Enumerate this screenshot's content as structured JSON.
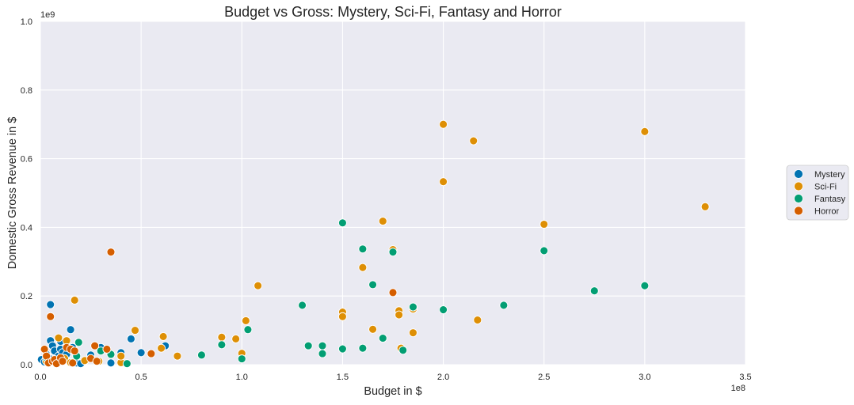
{
  "chart_data": {
    "type": "scatter",
    "title": "Budget vs Gross: Mystery, Sci-Fi, Fantasy and Horror",
    "xlabel": "Budget in $",
    "ylabel": "Domestic Gross Revenue in $",
    "x_exponent_label": "1e8",
    "y_exponent_label": "1e9",
    "xlim": [
      0,
      350000000
    ],
    "ylim": [
      0,
      1000000000
    ],
    "x_ticks": [
      0,
      50000000,
      100000000,
      150000000,
      200000000,
      250000000,
      300000000,
      350000000
    ],
    "x_tick_labels": [
      "0.0",
      "0.5",
      "1.0",
      "1.5",
      "2.0",
      "2.5",
      "3.0",
      "3.5"
    ],
    "y_ticks": [
      0,
      200000000,
      400000000,
      600000000,
      800000000,
      1000000000
    ],
    "y_tick_labels": [
      "0.0",
      "0.2",
      "0.4",
      "0.6",
      "0.8",
      "1.0"
    ],
    "grid": true,
    "legend_placement": "right, outside plot area",
    "series": [
      {
        "name": "Mystery",
        "color": "#0173b2",
        "points": [
          [
            500000,
            15000000
          ],
          [
            2000000,
            8000000
          ],
          [
            3000000,
            30000000
          ],
          [
            4000000,
            20000000
          ],
          [
            5000000,
            175000000
          ],
          [
            5000000,
            70000000
          ],
          [
            6000000,
            55000000
          ],
          [
            7000000,
            40000000
          ],
          [
            8000000,
            10000000
          ],
          [
            9000000,
            25000000
          ],
          [
            10000000,
            45000000
          ],
          [
            10000000,
            68000000
          ],
          [
            11000000,
            35000000
          ],
          [
            12000000,
            15000000
          ],
          [
            13000000,
            30000000
          ],
          [
            15000000,
            102000000
          ],
          [
            16000000,
            50000000
          ],
          [
            18000000,
            5000000
          ],
          [
            20000000,
            3000000
          ],
          [
            25000000,
            28000000
          ],
          [
            30000000,
            50000000
          ],
          [
            35000000,
            5000000
          ],
          [
            40000000,
            35000000
          ],
          [
            45000000,
            75000000
          ],
          [
            50000000,
            35000000
          ],
          [
            62000000,
            55000000
          ]
        ]
      },
      {
        "name": "Sci-Fi",
        "color": "#de8f05",
        "points": [
          [
            3000000,
            10000000
          ],
          [
            5000000,
            8000000
          ],
          [
            8000000,
            3000000
          ],
          [
            9000000,
            78000000
          ],
          [
            12000000,
            18000000
          ],
          [
            13000000,
            70000000
          ],
          [
            15000000,
            6000000
          ],
          [
            17000000,
            188000000
          ],
          [
            22000000,
            12000000
          ],
          [
            27000000,
            55000000
          ],
          [
            29000000,
            10000000
          ],
          [
            40000000,
            6000000
          ],
          [
            40000000,
            25000000
          ],
          [
            47000000,
            100000000
          ],
          [
            60000000,
            48000000
          ],
          [
            61000000,
            82000000
          ],
          [
            68000000,
            25000000
          ],
          [
            90000000,
            80000000
          ],
          [
            97000000,
            75000000
          ],
          [
            100000000,
            33000000
          ],
          [
            102000000,
            128000000
          ],
          [
            108000000,
            230000000
          ],
          [
            150000000,
            153000000
          ],
          [
            150000000,
            140000000
          ],
          [
            160000000,
            283000000
          ],
          [
            165000000,
            103000000
          ],
          [
            170000000,
            418000000
          ],
          [
            175000000,
            335000000
          ],
          [
            178000000,
            157000000
          ],
          [
            178000000,
            145000000
          ],
          [
            179000000,
            48000000
          ],
          [
            185000000,
            93000000
          ],
          [
            185000000,
            162000000
          ],
          [
            200000000,
            700000000
          ],
          [
            200000000,
            533000000
          ],
          [
            215000000,
            652000000
          ],
          [
            217000000,
            130000000
          ],
          [
            250000000,
            409000000
          ],
          [
            300000000,
            679000000
          ],
          [
            330000000,
            460000000
          ]
        ]
      },
      {
        "name": "Fantasy",
        "color": "#029e73",
        "points": [
          [
            3000000,
            20000000
          ],
          [
            18000000,
            25000000
          ],
          [
            19000000,
            65000000
          ],
          [
            30000000,
            40000000
          ],
          [
            35000000,
            30000000
          ],
          [
            43000000,
            3000000
          ],
          [
            80000000,
            28000000
          ],
          [
            90000000,
            58000000
          ],
          [
            100000000,
            17000000
          ],
          [
            103000000,
            102000000
          ],
          [
            130000000,
            173000000
          ],
          [
            133000000,
            55000000
          ],
          [
            140000000,
            55000000
          ],
          [
            140000000,
            32000000
          ],
          [
            150000000,
            413000000
          ],
          [
            150000000,
            46000000
          ],
          [
            160000000,
            337000000
          ],
          [
            160000000,
            48000000
          ],
          [
            165000000,
            233000000
          ],
          [
            170000000,
            77000000
          ],
          [
            175000000,
            328000000
          ],
          [
            180000000,
            42000000
          ],
          [
            185000000,
            168000000
          ],
          [
            200000000,
            160000000
          ],
          [
            230000000,
            173000000
          ],
          [
            250000000,
            332000000
          ],
          [
            275000000,
            215000000
          ],
          [
            300000000,
            230000000
          ]
        ]
      },
      {
        "name": "Horror",
        "color": "#d55e00",
        "points": [
          [
            2000000,
            45000000
          ],
          [
            3000000,
            25000000
          ],
          [
            4000000,
            5000000
          ],
          [
            5000000,
            140000000
          ],
          [
            6000000,
            10000000
          ],
          [
            7000000,
            15000000
          ],
          [
            8000000,
            3000000
          ],
          [
            10000000,
            20000000
          ],
          [
            11000000,
            10000000
          ],
          [
            13000000,
            50000000
          ],
          [
            15000000,
            45000000
          ],
          [
            16000000,
            5000000
          ],
          [
            17000000,
            40000000
          ],
          [
            25000000,
            18000000
          ],
          [
            27000000,
            55000000
          ],
          [
            28000000,
            10000000
          ],
          [
            33000000,
            45000000
          ],
          [
            35000000,
            328000000
          ],
          [
            55000000,
            32000000
          ],
          [
            175000000,
            210000000
          ]
        ]
      }
    ]
  }
}
